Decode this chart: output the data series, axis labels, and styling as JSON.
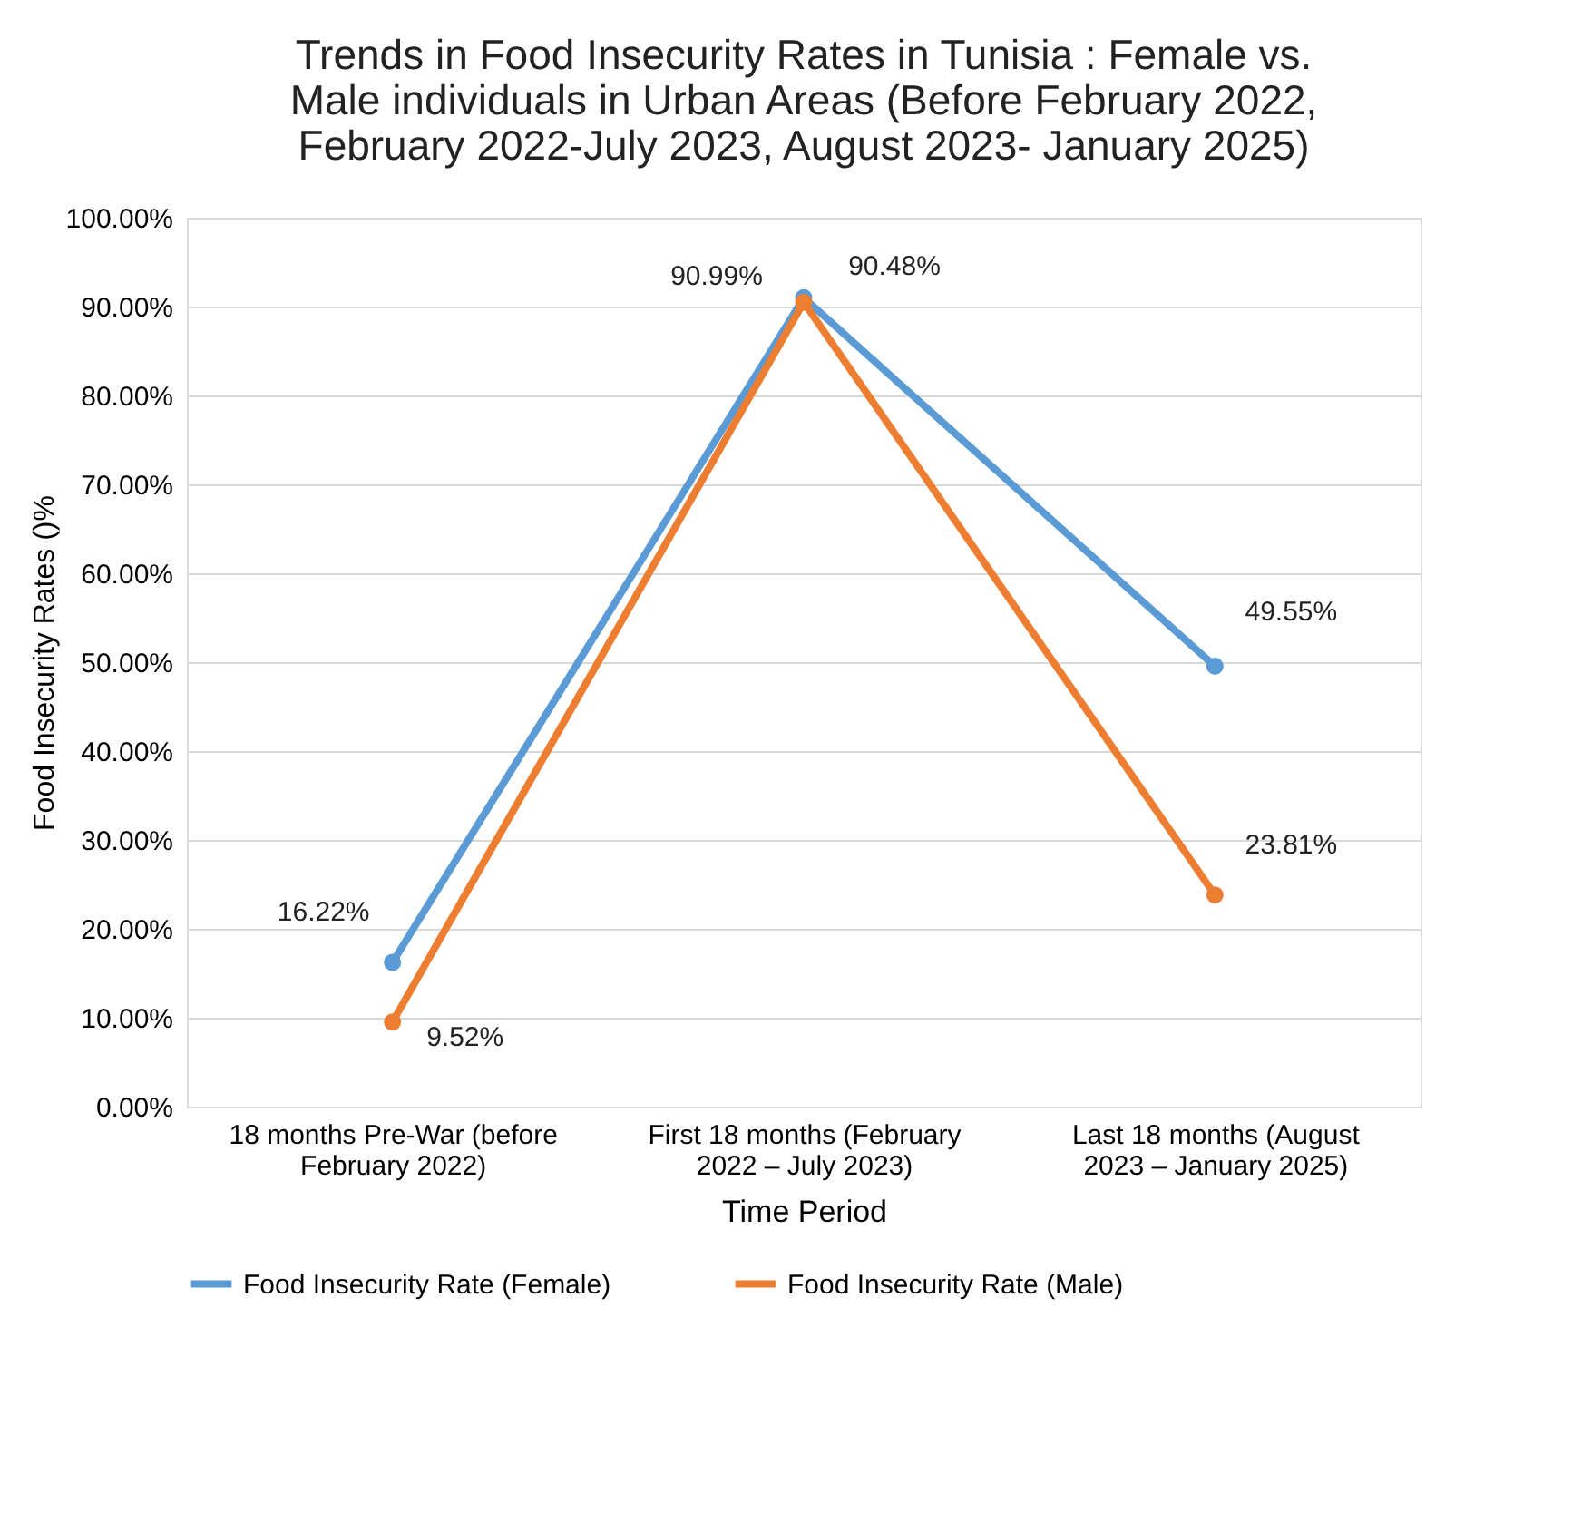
{
  "chart_data": {
    "type": "line",
    "title": "Trends in Food Insecurity Rates in Tunisia : Female vs. Male individuals in Urban Areas (Before February 2022, February 2022-July 2023, August 2023- January 2025)",
    "xlabel": "Time Period",
    "ylabel": "Food Insecurity Rates ()%",
    "categories": [
      "18 months Pre-War  (before February 2022)",
      "First 18 months (February 2022 – July 2023)",
      "Last 18 months (August 2023 – January 2025)"
    ],
    "series": [
      {
        "name": "Food Insecurity Rate (Female)",
        "color": "#5b9bd5",
        "values": [
          16.22,
          90.99,
          49.55
        ],
        "value_labels": [
          "16.22%",
          "90.99%",
          "49.55%"
        ]
      },
      {
        "name": "Food Insecurity Rate  (Male)",
        "color": "#ed7d31",
        "values": [
          9.52,
          90.48,
          23.81
        ],
        "value_labels": [
          "9.52%",
          "90.48%",
          "23.81%"
        ]
      }
    ],
    "ylim": [
      0,
      100
    ],
    "yticks": [
      {
        "value": 0,
        "label": "0.00%"
      },
      {
        "value": 10,
        "label": "10.00%"
      },
      {
        "value": 20,
        "label": "20.00%"
      },
      {
        "value": 30,
        "label": "30.00%"
      },
      {
        "value": 40,
        "label": "40.00%"
      },
      {
        "value": 50,
        "label": "50.00%"
      },
      {
        "value": 60,
        "label": "60.00%"
      },
      {
        "value": 70,
        "label": "70.00%"
      },
      {
        "value": 80,
        "label": "80.00%"
      },
      {
        "value": 90,
        "label": "90.00%"
      },
      {
        "value": 100,
        "label": "100.00%"
      }
    ],
    "grid": "y",
    "legend": "bottom",
    "marker": "circle",
    "line_style": "solid"
  }
}
